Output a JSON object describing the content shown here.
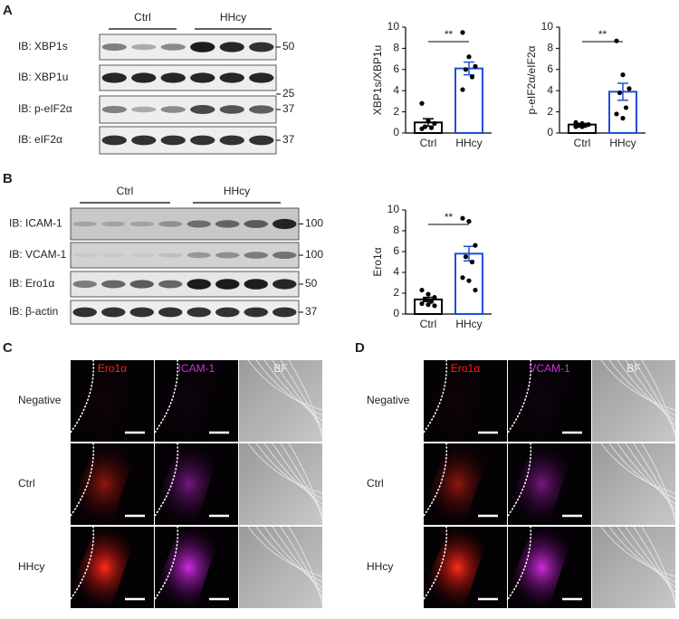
{
  "panels": [
    {
      "label": "A",
      "groups": [
        "Ctrl",
        "HHcy"
      ],
      "blots": [
        {
          "label": "IB: XBP1s",
          "marker": "50"
        },
        {
          "label": "IB: XBP1u",
          "marker": "25"
        },
        {
          "label": "IB: p-eIF2α",
          "marker": "37"
        },
        {
          "label": "IB: eIF2α",
          "marker": "37"
        }
      ]
    },
    {
      "label": "B",
      "groups": [
        "Ctrl",
        "HHcy"
      ],
      "blots": [
        {
          "label": "IB: ICAM-1",
          "marker": "100"
        },
        {
          "label": "IB: VCAM-1",
          "marker": "100"
        },
        {
          "label": "IB: Ero1α",
          "marker": "50"
        },
        {
          "label": "IB: β-actin",
          "marker": "37"
        }
      ]
    },
    {
      "label": "C",
      "channels": [
        "Ero1α",
        "ICAM-1",
        "BF"
      ],
      "rows": [
        "Negative",
        "Ctrl",
        "HHcy"
      ]
    },
    {
      "label": "D",
      "channels": [
        "Ero1α",
        "VCAM-1",
        "BF"
      ],
      "rows": [
        "Negative",
        "Ctrl",
        "HHcy"
      ]
    }
  ],
  "chart_data": [
    {
      "type": "bar",
      "ylabel": "XBP1s/XBP1u",
      "categories": [
        "Ctrl",
        "HHcy"
      ],
      "values": [
        1.0,
        6.1
      ],
      "errors": [
        0.35,
        0.6
      ],
      "points": [
        [
          2.8,
          1.2,
          0.9,
          0.6,
          0.5,
          0.4
        ],
        [
          9.5,
          7.2,
          6.3,
          6.0,
          5.3,
          4.1
        ]
      ],
      "colors": [
        "#000000",
        "#1f4fd8"
      ],
      "ylim": [
        0,
        10
      ],
      "yticks": [
        0,
        2,
        4,
        6,
        8,
        10
      ],
      "significance": "**"
    },
    {
      "type": "bar",
      "ylabel": "p-eIF2α/eIF2α",
      "categories": [
        "Ctrl",
        "HHcy"
      ],
      "values": [
        0.8,
        3.9
      ],
      "errors": [
        0.1,
        0.8
      ],
      "points": [
        [
          1.0,
          0.9,
          0.8,
          0.7,
          0.7,
          0.6,
          0.6
        ],
        [
          8.7,
          5.5,
          4.2,
          3.8,
          2.4,
          1.8,
          1.4
        ]
      ],
      "colors": [
        "#000000",
        "#1f4fd8"
      ],
      "ylim": [
        0,
        10
      ],
      "yticks": [
        0,
        2,
        4,
        6,
        8,
        10
      ],
      "significance": "**"
    },
    {
      "type": "bar",
      "ylabel": "Ero1α",
      "categories": [
        "Ctrl",
        "HHcy"
      ],
      "values": [
        1.4,
        5.8
      ],
      "errors": [
        0.2,
        0.7
      ],
      "points": [
        [
          2.3,
          1.9,
          1.6,
          1.4,
          1.2,
          1.0,
          0.9,
          0.8
        ],
        [
          9.2,
          8.9,
          6.6,
          5.5,
          5.0,
          3.5,
          3.2,
          2.3
        ]
      ],
      "colors": [
        "#000000",
        "#1f4fd8"
      ],
      "ylim": [
        0,
        10
      ],
      "yticks": [
        0,
        2,
        4,
        6,
        8,
        10
      ],
      "significance": "**"
    }
  ]
}
